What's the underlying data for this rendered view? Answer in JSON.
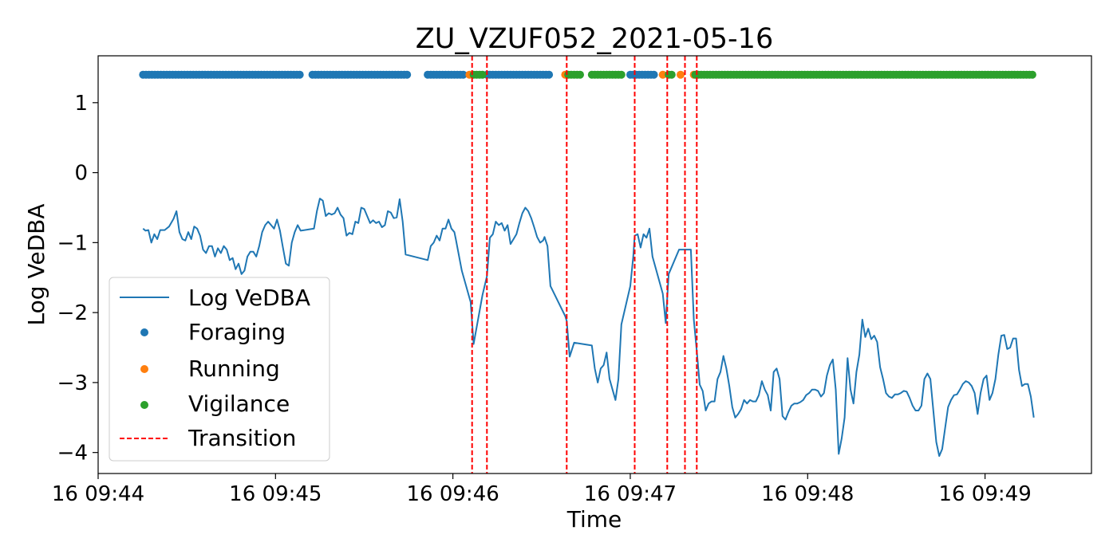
{
  "chart_data": {
    "type": "line",
    "title": "ZU_VZUF052_2021-05-16",
    "xlabel": "Time",
    "ylabel": "Log VeDBA",
    "xlim": [
      "16 09:44:00",
      "16 09:49:36"
    ],
    "ylim": [
      -4.3,
      1.67
    ],
    "grid": false,
    "legend_position": "lower-left",
    "x_ticks": [
      {
        "t": 0,
        "label": "16 09:44"
      },
      {
        "t": 60,
        "label": "16 09:45"
      },
      {
        "t": 120,
        "label": "16 09:46"
      },
      {
        "t": 180,
        "label": "16 09:47"
      },
      {
        "t": 240,
        "label": "16 09:48"
      },
      {
        "t": 300,
        "label": "16 09:49"
      }
    ],
    "y_ticks": [
      {
        "v": 1,
        "label": "1"
      },
      {
        "v": 0,
        "label": "0"
      },
      {
        "v": -1,
        "label": "−1"
      },
      {
        "v": -2,
        "label": "−2"
      },
      {
        "v": -3,
        "label": "−3"
      },
      {
        "v": -4,
        "label": "−4"
      }
    ],
    "x_time_note": "x values are seconds after 16 09:44:00",
    "series": [
      {
        "name": "Log VeDBA",
        "kind": "line",
        "color": "#1f77b4",
        "points": [
          [
            15.2,
            -0.8
          ],
          [
            16.0,
            -0.83
          ],
          [
            17.0,
            -0.82
          ],
          [
            18.0,
            -1.0
          ],
          [
            19.0,
            -0.88
          ],
          [
            20.0,
            -0.95
          ],
          [
            21.0,
            -0.82
          ],
          [
            22.5,
            -0.82
          ],
          [
            24.0,
            -0.77
          ],
          [
            25.5,
            -0.66
          ],
          [
            26.5,
            -0.55
          ],
          [
            27.5,
            -0.85
          ],
          [
            28.5,
            -0.95
          ],
          [
            29.5,
            -0.97
          ],
          [
            30.5,
            -0.85
          ],
          [
            31.5,
            -0.95
          ],
          [
            32.5,
            -0.77
          ],
          [
            33.5,
            -0.8
          ],
          [
            34.5,
            -0.9
          ],
          [
            35.5,
            -1.1
          ],
          [
            36.5,
            -1.15
          ],
          [
            37.5,
            -1.05
          ],
          [
            38.5,
            -1.05
          ],
          [
            39.5,
            -1.2
          ],
          [
            40.5,
            -1.08
          ],
          [
            41.5,
            -1.15
          ],
          [
            42.5,
            -1.05
          ],
          [
            43.5,
            -1.1
          ],
          [
            44.5,
            -1.25
          ],
          [
            45.5,
            -1.22
          ],
          [
            46.5,
            -1.38
          ],
          [
            47.5,
            -1.3
          ],
          [
            48.5,
            -1.45
          ],
          [
            49.5,
            -1.4
          ],
          [
            50.5,
            -1.2
          ],
          [
            51.5,
            -1.13
          ],
          [
            52.5,
            -1.13
          ],
          [
            53.5,
            -1.2
          ],
          [
            54.5,
            -1.05
          ],
          [
            55.5,
            -0.85
          ],
          [
            56.5,
            -0.75
          ],
          [
            57.5,
            -0.7
          ],
          [
            58.5,
            -0.75
          ],
          [
            59.5,
            -0.8
          ],
          [
            60.5,
            -0.67
          ],
          [
            61.5,
            -0.83
          ],
          [
            62.5,
            -1.07
          ],
          [
            63.5,
            -1.3
          ],
          [
            64.5,
            -1.33
          ],
          [
            65.5,
            -1.0
          ],
          [
            66.5,
            -0.85
          ],
          [
            67.5,
            -0.75
          ],
          [
            68.5,
            -0.83
          ],
          [
            73.0,
            -0.8
          ],
          [
            74.0,
            -0.55
          ],
          [
            75.0,
            -0.37
          ],
          [
            76.0,
            -0.4
          ],
          [
            77.0,
            -0.62
          ],
          [
            78.0,
            -0.58
          ],
          [
            79.0,
            -0.6
          ],
          [
            80.0,
            -0.58
          ],
          [
            81.0,
            -0.5
          ],
          [
            82.0,
            -0.6
          ],
          [
            83.0,
            -0.65
          ],
          [
            84.0,
            -0.9
          ],
          [
            85.0,
            -0.86
          ],
          [
            86.0,
            -0.88
          ],
          [
            87.0,
            -0.7
          ],
          [
            88.0,
            -0.72
          ],
          [
            89.0,
            -0.5
          ],
          [
            90.0,
            -0.52
          ],
          [
            91.0,
            -0.62
          ],
          [
            92.0,
            -0.72
          ],
          [
            93.0,
            -0.68
          ],
          [
            94.0,
            -0.72
          ],
          [
            95.0,
            -0.7
          ],
          [
            96.0,
            -0.78
          ],
          [
            97.0,
            -0.75
          ],
          [
            98.0,
            -0.55
          ],
          [
            99.0,
            -0.57
          ],
          [
            100.0,
            -0.65
          ],
          [
            101.0,
            -0.64
          ],
          [
            102.0,
            -0.38
          ],
          [
            103.0,
            -0.7
          ],
          [
            104.0,
            -1.17
          ],
          [
            111.5,
            -1.25
          ],
          [
            112.5,
            -1.05
          ],
          [
            113.5,
            -1.0
          ],
          [
            114.5,
            -0.9
          ],
          [
            115.5,
            -0.97
          ],
          [
            116.5,
            -0.8
          ],
          [
            117.5,
            -0.8
          ],
          [
            118.5,
            -0.67
          ],
          [
            119.5,
            -0.8
          ],
          [
            120.5,
            -0.85
          ],
          [
            121.0,
            -0.95
          ],
          [
            123.0,
            -1.4
          ],
          [
            126.0,
            -1.85
          ],
          [
            127.0,
            -2.45
          ],
          [
            130.0,
            -1.75
          ],
          [
            131.5,
            -1.48
          ],
          [
            132.5,
            -0.93
          ],
          [
            133.5,
            -0.88
          ],
          [
            134.5,
            -0.7
          ],
          [
            135.5,
            -0.75
          ],
          [
            136.5,
            -0.72
          ],
          [
            137.5,
            -0.83
          ],
          [
            138.5,
            -0.75
          ],
          [
            139.5,
            -1.02
          ],
          [
            140.5,
            -0.95
          ],
          [
            141.5,
            -0.88
          ],
          [
            142.5,
            -0.72
          ],
          [
            143.5,
            -0.58
          ],
          [
            144.5,
            -0.5
          ],
          [
            145.5,
            -0.55
          ],
          [
            146.5,
            -0.65
          ],
          [
            147.5,
            -0.78
          ],
          [
            148.5,
            -0.92
          ],
          [
            149.5,
            -1.0
          ],
          [
            150.5,
            -0.97
          ],
          [
            151.0,
            -0.92
          ],
          [
            152.0,
            -1.05
          ],
          [
            153.0,
            -1.62
          ],
          [
            158.0,
            -2.05
          ],
          [
            158.5,
            -2.12
          ],
          [
            159.5,
            -2.63
          ],
          [
            161.0,
            -2.43
          ],
          [
            167.0,
            -2.47
          ],
          [
            168.0,
            -2.8
          ],
          [
            169.0,
            -3.0
          ],
          [
            170.0,
            -2.8
          ],
          [
            171.0,
            -2.75
          ],
          [
            172.0,
            -2.57
          ],
          [
            173.0,
            -2.95
          ],
          [
            174.0,
            -3.1
          ],
          [
            175.0,
            -3.25
          ],
          [
            176.0,
            -2.95
          ],
          [
            177.0,
            -2.17
          ],
          [
            180.0,
            -1.62
          ],
          [
            181.0,
            -1.2
          ],
          [
            181.5,
            -0.9
          ],
          [
            182.5,
            -0.88
          ],
          [
            183.5,
            -1.07
          ],
          [
            184.5,
            -0.88
          ],
          [
            185.5,
            -0.93
          ],
          [
            186.5,
            -0.8
          ],
          [
            187.5,
            -1.2
          ],
          [
            191.0,
            -1.73
          ],
          [
            192.0,
            -2.15
          ],
          [
            193.0,
            -1.45
          ],
          [
            196.5,
            -1.1
          ],
          [
            200.5,
            -1.1
          ],
          [
            201.5,
            -2.1
          ],
          [
            202.5,
            -2.55
          ],
          [
            203.5,
            -3.03
          ],
          [
            204.5,
            -3.12
          ],
          [
            205.5,
            -3.4
          ],
          [
            206.5,
            -3.3
          ],
          [
            207.5,
            -3.27
          ],
          [
            208.5,
            -3.27
          ],
          [
            209.5,
            -2.95
          ],
          [
            210.5,
            -2.85
          ],
          [
            211.5,
            -2.62
          ],
          [
            212.5,
            -2.8
          ],
          [
            213.5,
            -3.05
          ],
          [
            214.5,
            -3.35
          ],
          [
            215.5,
            -3.5
          ],
          [
            216.5,
            -3.45
          ],
          [
            217.5,
            -3.38
          ],
          [
            218.5,
            -3.25
          ],
          [
            219.5,
            -3.3
          ],
          [
            220.5,
            -3.25
          ],
          [
            221.5,
            -3.27
          ],
          [
            222.5,
            -3.27
          ],
          [
            223.5,
            -3.18
          ],
          [
            224.5,
            -2.98
          ],
          [
            225.5,
            -3.1
          ],
          [
            226.5,
            -3.18
          ],
          [
            227.5,
            -3.4
          ],
          [
            228.5,
            -2.85
          ],
          [
            229.5,
            -2.8
          ],
          [
            230.5,
            -2.95
          ],
          [
            231.5,
            -3.48
          ],
          [
            232.5,
            -3.53
          ],
          [
            233.5,
            -3.42
          ],
          [
            234.5,
            -3.33
          ],
          [
            235.5,
            -3.3
          ],
          [
            236.5,
            -3.3
          ],
          [
            237.5,
            -3.28
          ],
          [
            238.5,
            -3.25
          ],
          [
            239.5,
            -3.18
          ],
          [
            240.5,
            -3.15
          ],
          [
            241.5,
            -3.1
          ],
          [
            242.5,
            -3.1
          ],
          [
            243.5,
            -3.12
          ],
          [
            244.5,
            -3.2
          ],
          [
            245.5,
            -3.15
          ],
          [
            246.5,
            -2.9
          ],
          [
            247.5,
            -2.75
          ],
          [
            248.5,
            -2.67
          ],
          [
            249.5,
            -3.1
          ],
          [
            250.5,
            -4.02
          ],
          [
            251.5,
            -3.8
          ],
          [
            252.5,
            -3.5
          ],
          [
            253.5,
            -2.65
          ],
          [
            254.5,
            -3.1
          ],
          [
            255.5,
            -3.3
          ],
          [
            256.5,
            -2.85
          ],
          [
            257.5,
            -2.6
          ],
          [
            258.5,
            -2.1
          ],
          [
            259.5,
            -2.35
          ],
          [
            260.5,
            -2.23
          ],
          [
            261.5,
            -2.38
          ],
          [
            262.5,
            -2.33
          ],
          [
            263.5,
            -2.42
          ],
          [
            264.5,
            -2.78
          ],
          [
            265.5,
            -2.95
          ],
          [
            266.5,
            -3.15
          ],
          [
            267.5,
            -3.2
          ],
          [
            268.5,
            -3.22
          ],
          [
            269.5,
            -3.17
          ],
          [
            270.5,
            -3.17
          ],
          [
            271.5,
            -3.15
          ],
          [
            272.5,
            -3.12
          ],
          [
            273.5,
            -3.13
          ],
          [
            274.5,
            -3.22
          ],
          [
            275.5,
            -3.33
          ],
          [
            276.5,
            -3.4
          ],
          [
            277.5,
            -3.4
          ],
          [
            278.5,
            -3.33
          ],
          [
            279.5,
            -2.95
          ],
          [
            280.5,
            -2.87
          ],
          [
            281.5,
            -2.95
          ],
          [
            282.5,
            -3.4
          ],
          [
            283.5,
            -3.85
          ],
          [
            284.5,
            -4.05
          ],
          [
            285.5,
            -3.95
          ],
          [
            286.5,
            -3.65
          ],
          [
            287.5,
            -3.35
          ],
          [
            288.5,
            -3.25
          ],
          [
            289.5,
            -3.18
          ],
          [
            290.5,
            -3.17
          ],
          [
            291.5,
            -3.1
          ],
          [
            292.5,
            -3.02
          ],
          [
            293.5,
            -2.98
          ],
          [
            294.5,
            -3.0
          ],
          [
            295.5,
            -3.05
          ],
          [
            296.5,
            -3.15
          ],
          [
            297.5,
            -3.45
          ],
          [
            298.5,
            -3.15
          ],
          [
            299.5,
            -2.95
          ],
          [
            300.5,
            -2.9
          ],
          [
            301.5,
            -3.25
          ],
          [
            302.5,
            -3.15
          ],
          [
            303.5,
            -2.95
          ],
          [
            304.5,
            -2.6
          ],
          [
            305.5,
            -2.33
          ],
          [
            306.5,
            -2.32
          ],
          [
            307.5,
            -2.52
          ],
          [
            308.5,
            -2.5
          ],
          [
            309.5,
            -2.37
          ],
          [
            310.5,
            -2.37
          ],
          [
            311.5,
            -2.82
          ],
          [
            312.5,
            -3.05
          ],
          [
            313.5,
            -3.02
          ],
          [
            314.5,
            -3.02
          ],
          [
            315.5,
            -3.2
          ],
          [
            316.5,
            -3.5
          ]
        ]
      },
      {
        "name": "Foraging",
        "kind": "scatter",
        "color": "#1f77b4",
        "y": 1.4,
        "segments": [
          [
            15.2,
            68.5
          ],
          [
            72.5,
            104.5
          ],
          [
            111.5,
            123.5
          ],
          [
            131.5,
            153.0
          ],
          [
            180.0,
            188.5
          ]
        ]
      },
      {
        "name": "Running",
        "kind": "scatter",
        "color": "#ff7f0e",
        "y": 1.4,
        "segments": [
          [
            125.6,
            125.6
          ],
          [
            158.0,
            158.0
          ],
          [
            191.0,
            191.0
          ],
          [
            197.0,
            197.0
          ],
          [
            201.5,
            201.5
          ]
        ]
      },
      {
        "name": "Vigilance",
        "kind": "scatter",
        "color": "#2ca02c",
        "y": 1.4,
        "segments": [
          [
            127.0,
            130.0
          ],
          [
            159.0,
            163.0
          ],
          [
            167.0,
            177.0
          ],
          [
            193.0,
            194.5
          ],
          [
            202.0,
            316.5
          ]
        ]
      },
      {
        "name": "Transition",
        "kind": "vline",
        "color": "#ff0000",
        "x": [
          126.5,
          131.5,
          158.5,
          181.5,
          192.5,
          198.5,
          202.5
        ]
      }
    ]
  }
}
